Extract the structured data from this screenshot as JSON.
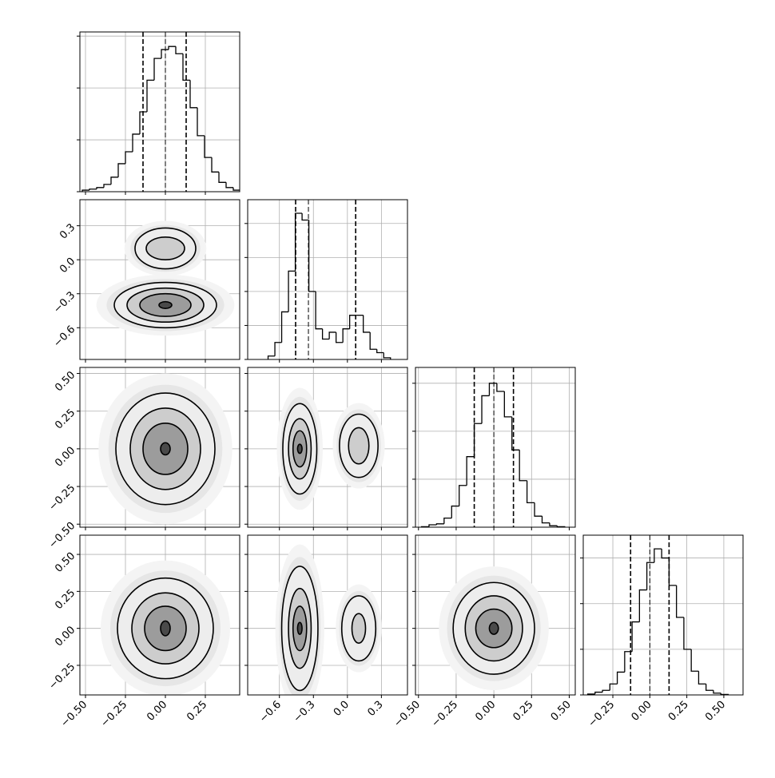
{
  "chart_data": {
    "type": "corner",
    "color": "#000000",
    "grid": true,
    "variables": [
      {
        "lim": [
          -0.535,
          0.465
        ],
        "ticks": [
          {
            "value": -0.5,
            "label": "−0.50"
          },
          {
            "value": -0.25,
            "label": "−0.25"
          },
          {
            "value": 0,
            "label": "0.00"
          },
          {
            "value": 0.25,
            "label": "0.25"
          }
        ]
      },
      {
        "lim": [
          -0.88,
          0.53
        ],
        "ticks": [
          {
            "value": -0.6,
            "label": "−0.6"
          },
          {
            "value": -0.3,
            "label": "−0.3"
          },
          {
            "value": 0,
            "label": "0.0"
          },
          {
            "value": 0.3,
            "label": "0.3"
          }
        ]
      },
      {
        "lim": [
          -0.52,
          0.54
        ],
        "ticks": [
          {
            "value": -0.5,
            "label": "−0.50"
          },
          {
            "value": -0.25,
            "label": "−0.25"
          },
          {
            "value": 0,
            "label": "0.00"
          },
          {
            "value": 0.25,
            "label": "0.25"
          },
          {
            "value": 0.5,
            "label": "0.50"
          }
        ]
      },
      {
        "lim": [
          -0.45,
          0.63
        ],
        "ticks": [
          {
            "value": -0.25,
            "label": "−0.25"
          },
          {
            "value": 0,
            "label": "0.00"
          },
          {
            "value": 0.25,
            "label": "0.25"
          },
          {
            "value": 0.5,
            "label": "0.50"
          }
        ]
      }
    ],
    "histograms": [
      {
        "bins": [
          -0.52,
          -0.475,
          -0.43,
          -0.385,
          -0.34,
          -0.295,
          -0.25,
          -0.205,
          -0.16,
          -0.115,
          -0.07,
          -0.025,
          0.02,
          0.065,
          0.11,
          0.155,
          0.2,
          0.245,
          0.29,
          0.335,
          0.38,
          0.425,
          0.47
        ],
        "values": [
          0.03,
          0.05,
          0.08,
          0.14,
          0.28,
          0.54,
          0.77,
          1.11,
          1.54,
          2.15,
          2.57,
          2.74,
          2.8,
          2.66,
          2.15,
          1.62,
          1.08,
          0.66,
          0.38,
          0.18,
          0.08,
          0.03
        ],
        "ylim": [
          0,
          3.08
        ],
        "yticks": [
          0,
          1,
          2,
          3
        ],
        "quantiles": [
          -0.14,
          0,
          0.13
        ]
      },
      {
        "bins": [
          -0.7,
          -0.64,
          -0.58,
          -0.52,
          -0.46,
          -0.4,
          -0.34,
          -0.28,
          -0.22,
          -0.16,
          -0.1,
          -0.04,
          0.02,
          0.08,
          0.14,
          0.2,
          0.26,
          0.32,
          0.38
        ],
        "values": [
          0.1,
          0.5,
          1.4,
          2.6,
          4.3,
          4.1,
          2.0,
          0.9,
          0.6,
          0.8,
          0.5,
          0.9,
          1.3,
          1.3,
          0.8,
          0.3,
          0.2,
          0.05
        ],
        "ylim": [
          0,
          4.7
        ],
        "yticks": [
          0,
          1,
          2,
          3,
          4
        ],
        "quantiles": [
          -0.457,
          -0.344,
          0.073
        ]
      },
      {
        "bins": [
          -0.48,
          -0.43,
          -0.38,
          -0.33,
          -0.28,
          -0.23,
          -0.18,
          -0.13,
          -0.08,
          -0.03,
          0.02,
          0.07,
          0.12,
          0.17,
          0.22,
          0.27,
          0.32,
          0.37,
          0.42,
          0.47
        ],
        "values": [
          0.01,
          0.05,
          0.07,
          0.19,
          0.44,
          0.87,
          1.47,
          2.16,
          2.74,
          3.0,
          2.83,
          2.3,
          1.61,
          0.97,
          0.51,
          0.23,
          0.09,
          0.03,
          0.01
        ],
        "ylim": [
          0,
          3.33
        ],
        "yticks": [
          0,
          1,
          2,
          3
        ],
        "quantiles": [
          -0.13,
          0,
          0.13
        ]
      },
      {
        "bins": [
          -0.42,
          -0.37,
          -0.32,
          -0.27,
          -0.22,
          -0.17,
          -0.12,
          -0.07,
          -0.02,
          0.03,
          0.08,
          0.13,
          0.18,
          0.23,
          0.28,
          0.33,
          0.38,
          0.43,
          0.48,
          0.53
        ],
        "values": [
          0.02,
          0.06,
          0.1,
          0.24,
          0.5,
          0.95,
          1.6,
          2.3,
          2.9,
          3.2,
          3.0,
          2.4,
          1.7,
          1.0,
          0.52,
          0.24,
          0.1,
          0.04,
          0.01
        ],
        "ylim": [
          0,
          3.5
        ],
        "yticks": [
          0,
          1,
          2,
          3
        ],
        "quantiles": [
          -0.13,
          0,
          0.13
        ]
      }
    ],
    "panels": [
      {
        "contours": [
          {
            "x": 0,
            "y": -0.4,
            "rx": 0.32,
            "ry": 0.2
          },
          {
            "x": 0,
            "y": -0.4,
            "rx": 0.24,
            "ry": 0.15
          },
          {
            "x": 0,
            "y": -0.4,
            "rx": 0.16,
            "ry": 0.1
          },
          {
            "x": 0,
            "y": -0.4,
            "rx": 0.04,
            "ry": 0.03
          },
          {
            "x": 0,
            "y": 0.1,
            "rx": 0.19,
            "ry": 0.18
          },
          {
            "x": 0,
            "y": 0.1,
            "rx": 0.12,
            "ry": 0.1
          }
        ]
      },
      {
        "contours": [
          {
            "x": 0,
            "y": 0,
            "rx": 0.31,
            "ry": 0.37
          },
          {
            "x": 0,
            "y": 0,
            "rx": 0.22,
            "ry": 0.27
          },
          {
            "x": 0,
            "y": 0,
            "rx": 0.14,
            "ry": 0.17
          },
          {
            "x": 0,
            "y": 0,
            "rx": 0.03,
            "ry": 0.04
          }
        ]
      },
      {
        "contours": [
          {
            "x": -0.42,
            "y": 0,
            "rx": 0.15,
            "ry": 0.3
          },
          {
            "x": -0.42,
            "y": 0,
            "rx": 0.1,
            "ry": 0.2
          },
          {
            "x": -0.42,
            "y": 0,
            "rx": 0.06,
            "ry": 0.12
          },
          {
            "x": -0.42,
            "y": 0,
            "rx": 0.02,
            "ry": 0.03
          },
          {
            "x": 0.1,
            "y": 0.02,
            "rx": 0.17,
            "ry": 0.21
          },
          {
            "x": 0.1,
            "y": 0.02,
            "rx": 0.09,
            "ry": 0.12
          }
        ]
      },
      {
        "contours": [
          {
            "x": 0,
            "y": 0,
            "rx": 0.3,
            "ry": 0.34
          },
          {
            "x": 0,
            "y": 0,
            "rx": 0.21,
            "ry": 0.24
          },
          {
            "x": 0,
            "y": 0,
            "rx": 0.13,
            "ry": 0.15
          },
          {
            "x": 0,
            "y": 0,
            "rx": 0.03,
            "ry": 0.05
          }
        ]
      },
      {
        "contours": [
          {
            "x": -0.42,
            "y": 0,
            "rx": 0.16,
            "ry": 0.42
          },
          {
            "x": -0.42,
            "y": 0,
            "rx": 0.1,
            "ry": 0.27
          },
          {
            "x": -0.42,
            "y": 0,
            "rx": 0.06,
            "ry": 0.15
          },
          {
            "x": -0.42,
            "y": 0,
            "rx": 0.02,
            "ry": 0.04
          },
          {
            "x": 0.1,
            "y": 0,
            "rx": 0.15,
            "ry": 0.22
          },
          {
            "x": 0.1,
            "y": 0,
            "rx": 0.06,
            "ry": 0.1
          }
        ]
      },
      {
        "contours": [
          {
            "x": 0,
            "y": 0,
            "rx": 0.27,
            "ry": 0.31
          },
          {
            "x": 0,
            "y": 0,
            "rx": 0.19,
            "ry": 0.22
          },
          {
            "x": 0,
            "y": 0,
            "rx": 0.12,
            "ry": 0.13
          },
          {
            "x": 0,
            "y": 0,
            "rx": 0.03,
            "ry": 0.04
          }
        ]
      }
    ]
  }
}
